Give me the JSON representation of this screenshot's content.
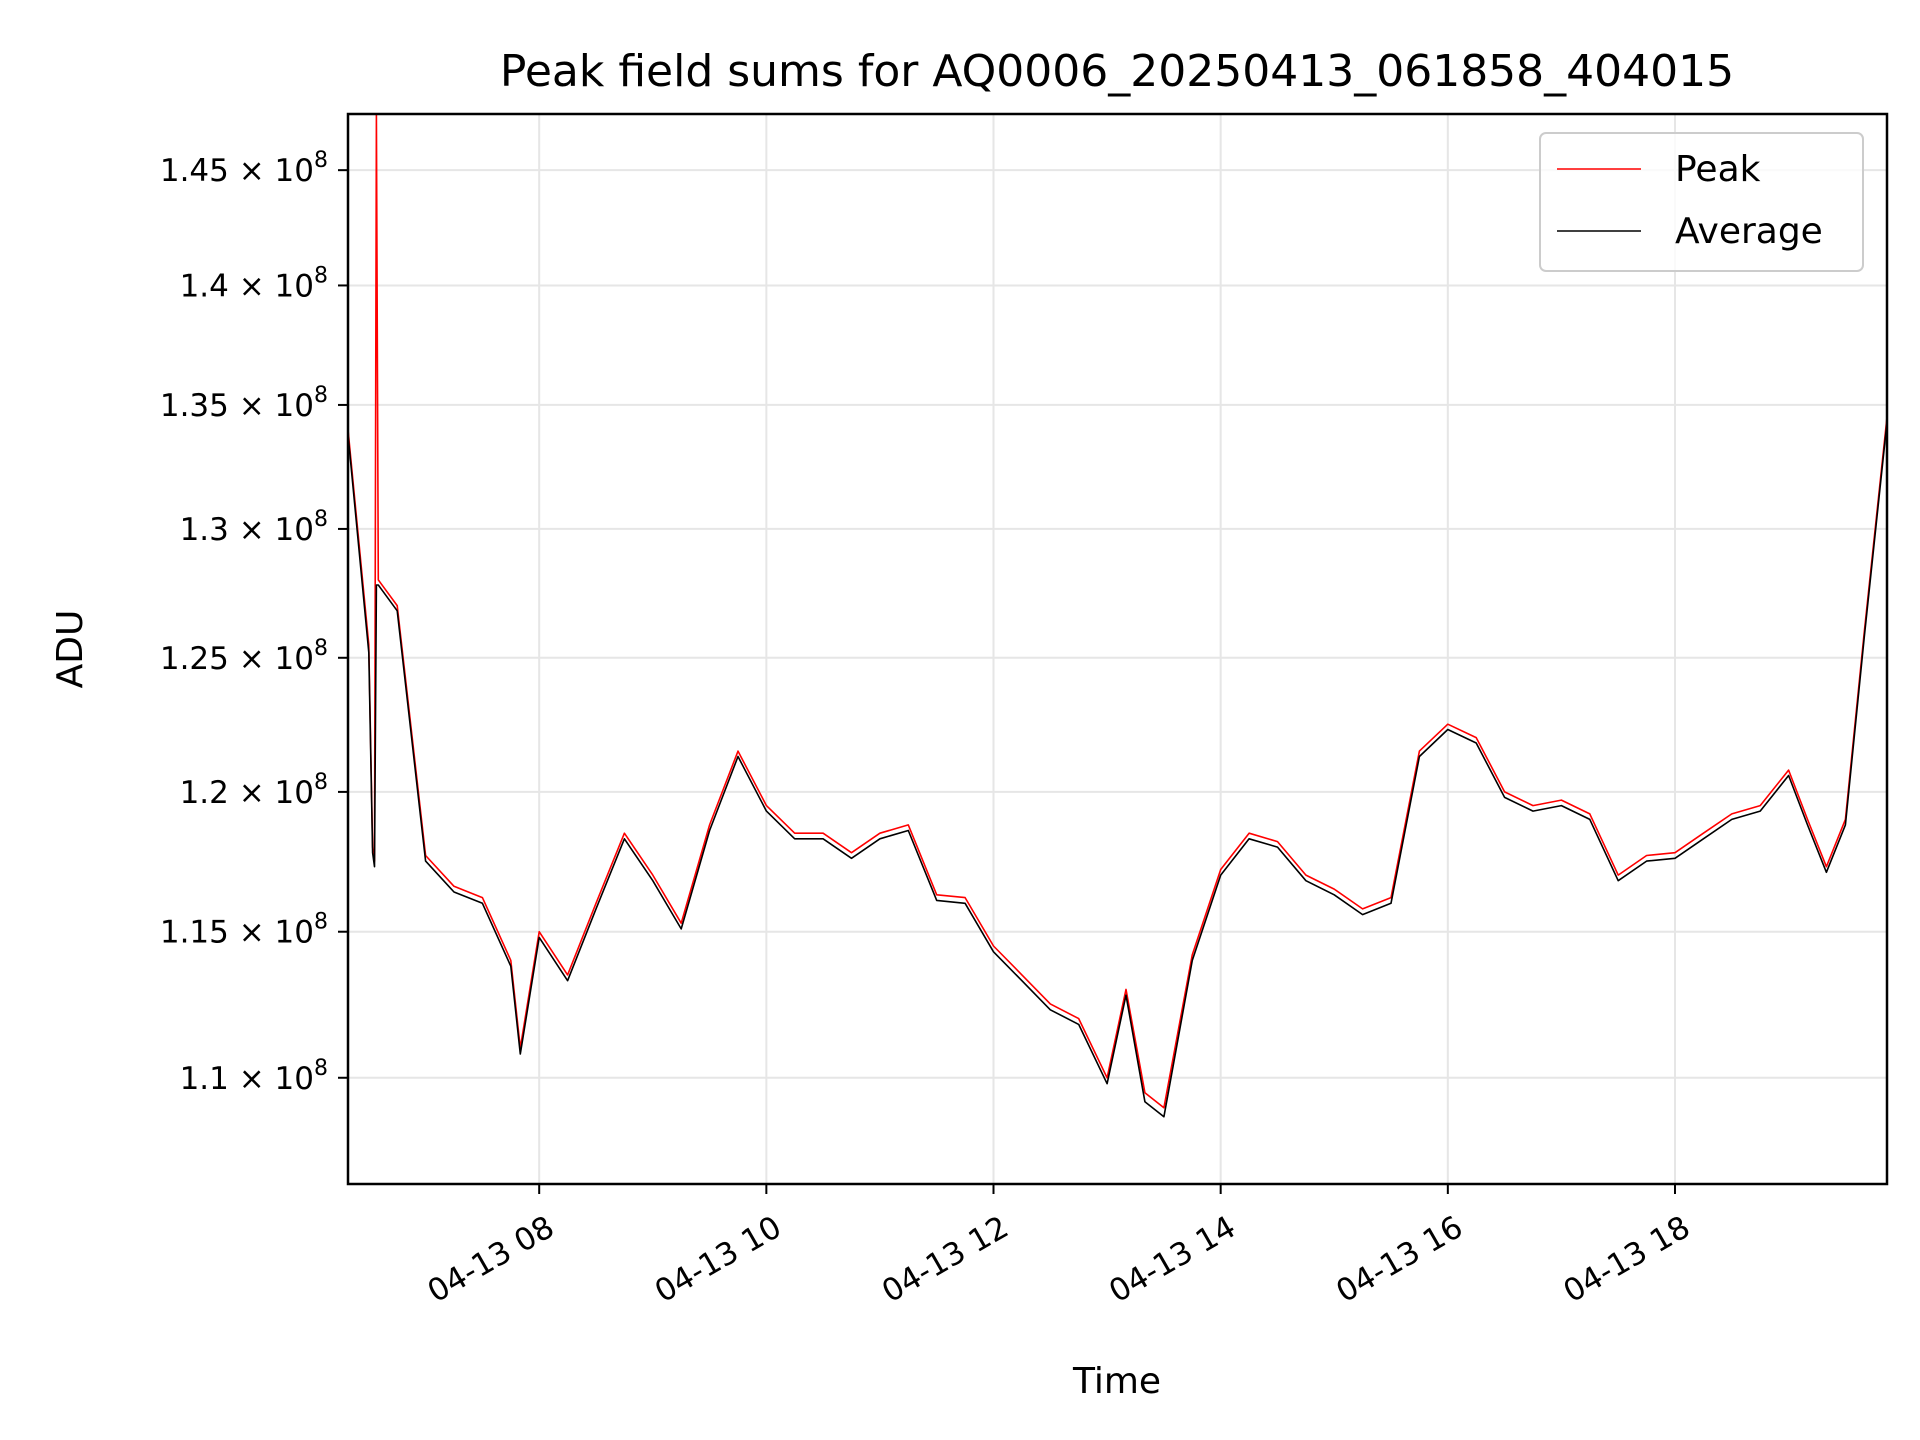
{
  "chart_data": {
    "type": "line",
    "title": "Peak field sums for AQ0006_20250413_061858_404015",
    "xlabel": "Time",
    "ylabel": "ADU",
    "y_scale": "log",
    "grid": true,
    "legend_position": "top-right",
    "xlim": [
      "2025-04-13T06:19",
      "2025-04-13T19:52"
    ],
    "ylim": [
      106500000,
      147500000
    ],
    "x_ticks": [
      {
        "value": "2025-04-13T08:00",
        "label": "04-13 08"
      },
      {
        "value": "2025-04-13T10:00",
        "label": "04-13 10"
      },
      {
        "value": "2025-04-13T12:00",
        "label": "04-13 12"
      },
      {
        "value": "2025-04-13T14:00",
        "label": "04-13 14"
      },
      {
        "value": "2025-04-13T16:00",
        "label": "04-13 16"
      },
      {
        "value": "2025-04-13T18:00",
        "label": "04-13 18"
      }
    ],
    "y_ticks": [
      {
        "value": 110000000,
        "mantissa": "1.1",
        "exp": "8"
      },
      {
        "value": 115000000,
        "mantissa": "1.15",
        "exp": "8"
      },
      {
        "value": 120000000,
        "mantissa": "1.2",
        "exp": "8"
      },
      {
        "value": 125000000,
        "mantissa": "1.25",
        "exp": "8"
      },
      {
        "value": 130000000,
        "mantissa": "1.3",
        "exp": "8"
      },
      {
        "value": 135000000,
        "mantissa": "1.35",
        "exp": "8"
      },
      {
        "value": 140000000,
        "mantissa": "1.4",
        "exp": "8"
      },
      {
        "value": 145000000,
        "mantissa": "1.45",
        "exp": "8"
      }
    ],
    "series": [
      {
        "name": "Peak",
        "color": "#ff0000",
        "x": [
          "2025-04-13T06:19",
          "2025-04-13T06:30",
          "2025-04-13T06:32",
          "2025-04-13T06:33",
          "2025-04-13T06:34",
          "2025-04-13T06:35",
          "2025-04-13T06:45",
          "2025-04-13T07:00",
          "2025-04-13T07:15",
          "2025-04-13T07:30",
          "2025-04-13T07:45",
          "2025-04-13T07:50",
          "2025-04-13T08:00",
          "2025-04-13T08:15",
          "2025-04-13T08:30",
          "2025-04-13T08:45",
          "2025-04-13T09:00",
          "2025-04-13T09:15",
          "2025-04-13T09:30",
          "2025-04-13T09:45",
          "2025-04-13T10:00",
          "2025-04-13T10:15",
          "2025-04-13T10:30",
          "2025-04-13T10:45",
          "2025-04-13T11:00",
          "2025-04-13T11:15",
          "2025-04-13T11:30",
          "2025-04-13T11:45",
          "2025-04-13T12:00",
          "2025-04-13T12:15",
          "2025-04-13T12:30",
          "2025-04-13T12:45",
          "2025-04-13T13:00",
          "2025-04-13T13:10",
          "2025-04-13T13:20",
          "2025-04-13T13:30",
          "2025-04-13T13:45",
          "2025-04-13T14:00",
          "2025-04-13T14:15",
          "2025-04-13T14:30",
          "2025-04-13T14:45",
          "2025-04-13T15:00",
          "2025-04-13T15:15",
          "2025-04-13T15:30",
          "2025-04-13T15:45",
          "2025-04-13T16:00",
          "2025-04-13T16:15",
          "2025-04-13T16:30",
          "2025-04-13T16:45",
          "2025-04-13T17:00",
          "2025-04-13T17:15",
          "2025-04-13T17:30",
          "2025-04-13T17:45",
          "2025-04-13T18:00",
          "2025-04-13T18:15",
          "2025-04-13T18:30",
          "2025-04-13T18:45",
          "2025-04-13T19:00",
          "2025-04-13T19:10",
          "2025-04-13T19:20",
          "2025-04-13T19:30",
          "2025-04-13T19:40",
          "2025-04-13T19:52"
        ],
        "values": [
          134000000,
          125500000,
          118000000,
          117500000,
          147500000,
          128000000,
          127000000,
          117700000,
          116600000,
          116200000,
          114000000,
          111000000,
          115000000,
          113500000,
          116000000,
          118500000,
          117000000,
          115300000,
          118800000,
          121500000,
          119500000,
          118500000,
          118500000,
          117800000,
          118500000,
          118800000,
          116300000,
          116200000,
          114500000,
          113500000,
          112500000,
          112000000,
          110000000,
          113000000,
          109500000,
          109000000,
          114200000,
          117200000,
          118500000,
          118200000,
          117000000,
          116500000,
          115800000,
          116200000,
          121500000,
          122500000,
          122000000,
          120000000,
          119500000,
          119700000,
          119200000,
          117000000,
          117700000,
          117800000,
          118500000,
          119200000,
          119500000,
          120800000,
          119000000,
          117300000,
          119000000,
          126000000,
          134500000
        ]
      },
      {
        "name": "Average",
        "color": "#000000",
        "x": [
          "2025-04-13T06:19",
          "2025-04-13T06:30",
          "2025-04-13T06:32",
          "2025-04-13T06:33",
          "2025-04-13T06:34",
          "2025-04-13T06:35",
          "2025-04-13T06:45",
          "2025-04-13T07:00",
          "2025-04-13T07:15",
          "2025-04-13T07:30",
          "2025-04-13T07:45",
          "2025-04-13T07:50",
          "2025-04-13T08:00",
          "2025-04-13T08:15",
          "2025-04-13T08:30",
          "2025-04-13T08:45",
          "2025-04-13T09:00",
          "2025-04-13T09:15",
          "2025-04-13T09:30",
          "2025-04-13T09:45",
          "2025-04-13T10:00",
          "2025-04-13T10:15",
          "2025-04-13T10:30",
          "2025-04-13T10:45",
          "2025-04-13T11:00",
          "2025-04-13T11:15",
          "2025-04-13T11:30",
          "2025-04-13T11:45",
          "2025-04-13T12:00",
          "2025-04-13T12:15",
          "2025-04-13T12:30",
          "2025-04-13T12:45",
          "2025-04-13T13:00",
          "2025-04-13T13:10",
          "2025-04-13T13:20",
          "2025-04-13T13:30",
          "2025-04-13T13:45",
          "2025-04-13T14:00",
          "2025-04-13T14:15",
          "2025-04-13T14:30",
          "2025-04-13T14:45",
          "2025-04-13T15:00",
          "2025-04-13T15:15",
          "2025-04-13T15:30",
          "2025-04-13T15:45",
          "2025-04-13T16:00",
          "2025-04-13T16:15",
          "2025-04-13T16:30",
          "2025-04-13T16:45",
          "2025-04-13T17:00",
          "2025-04-13T17:15",
          "2025-04-13T17:30",
          "2025-04-13T17:45",
          "2025-04-13T18:00",
          "2025-04-13T18:15",
          "2025-04-13T18:30",
          "2025-04-13T18:45",
          "2025-04-13T19:00",
          "2025-04-13T19:10",
          "2025-04-13T19:20",
          "2025-04-13T19:30",
          "2025-04-13T19:40",
          "2025-04-13T19:52"
        ],
        "values": [
          133800000,
          125200000,
          117800000,
          117300000,
          127800000,
          127800000,
          126800000,
          117500000,
          116400000,
          116000000,
          113800000,
          110800000,
          114800000,
          113300000,
          115800000,
          118300000,
          116800000,
          115100000,
          118600000,
          121300000,
          119300000,
          118300000,
          118300000,
          117600000,
          118300000,
          118600000,
          116100000,
          116000000,
          114300000,
          113300000,
          112300000,
          111800000,
          109800000,
          112800000,
          109200000,
          108700000,
          114000000,
          117000000,
          118300000,
          118000000,
          116800000,
          116300000,
          115600000,
          116000000,
          121300000,
          122300000,
          121800000,
          119800000,
          119300000,
          119500000,
          119000000,
          116800000,
          117500000,
          117600000,
          118300000,
          119000000,
          119300000,
          120600000,
          118800000,
          117100000,
          118800000,
          125800000,
          134300000
        ]
      }
    ]
  }
}
